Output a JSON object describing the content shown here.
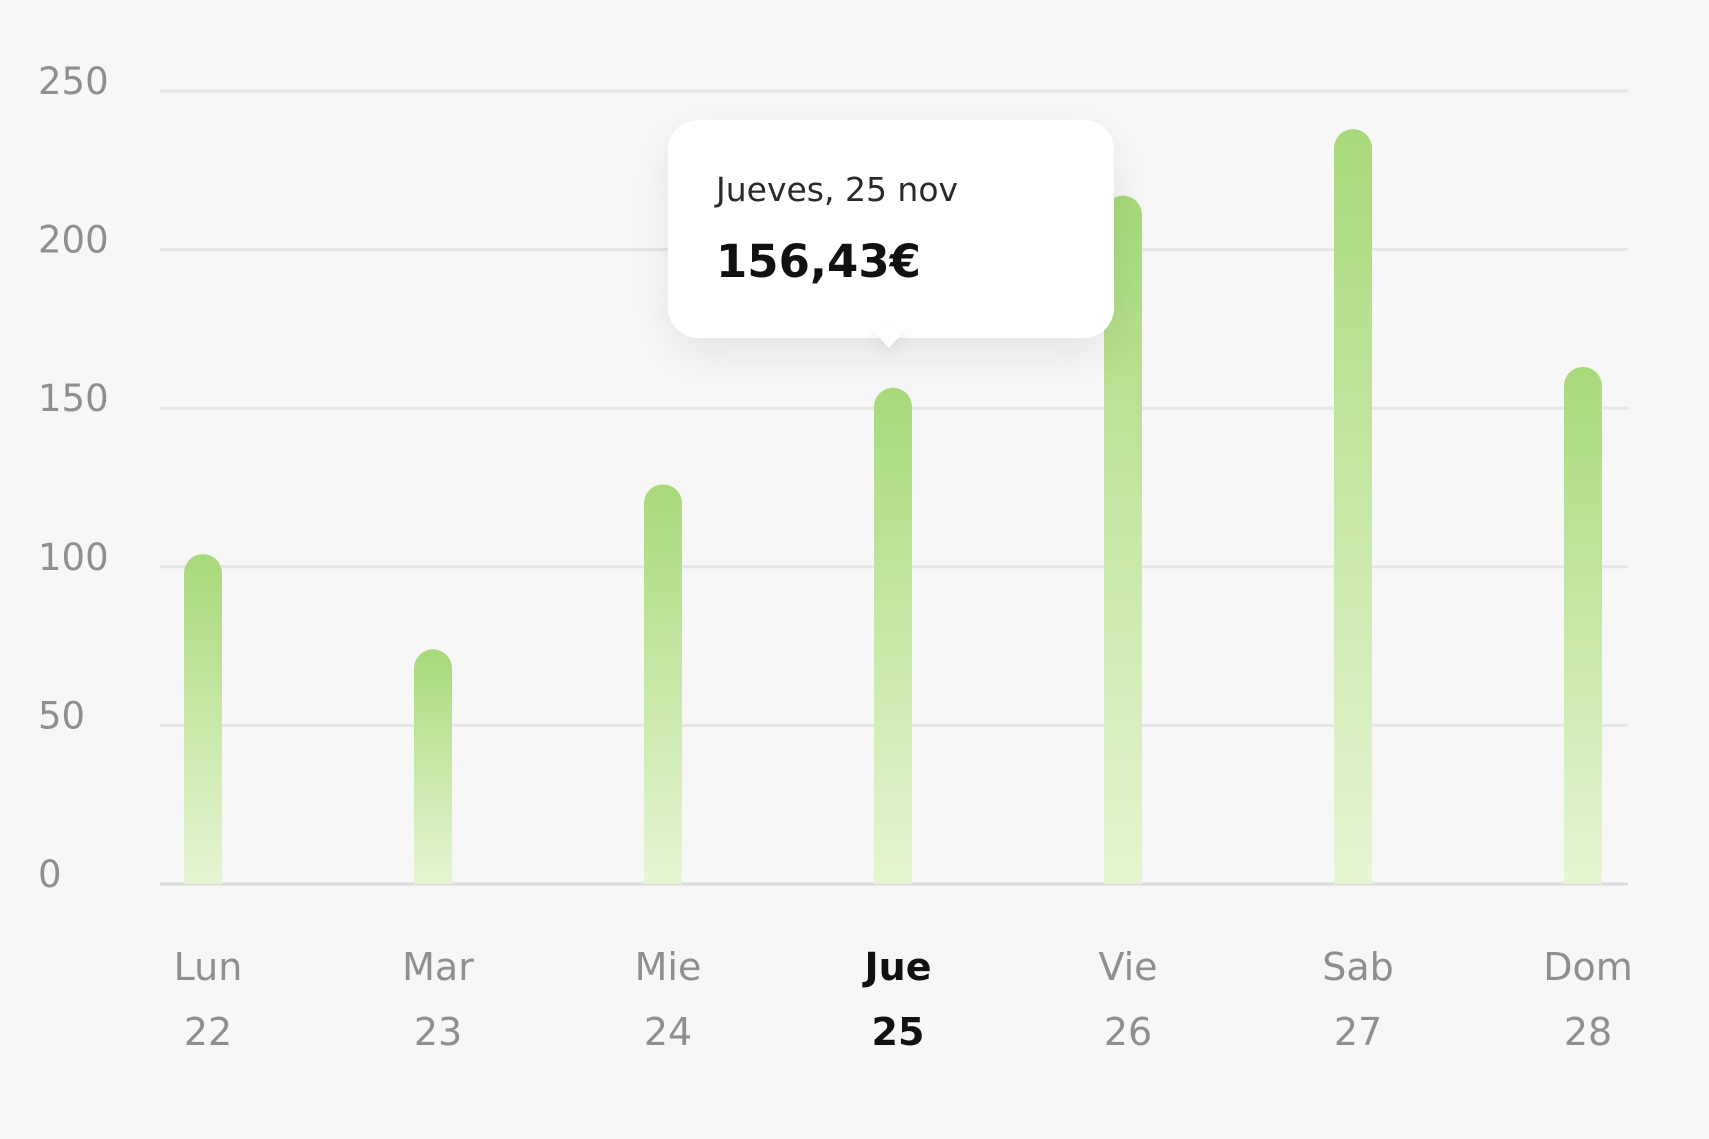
{
  "chart_data": {
    "type": "bar",
    "categories": [
      "Lun 22",
      "Mar 23",
      "Mie 24",
      "Jue 25",
      "Vie 26",
      "Sab 27",
      "Dom 28"
    ],
    "day_labels": [
      "Lun",
      "Mar",
      "Mie",
      "Jue",
      "Vie",
      "Sab",
      "Dom"
    ],
    "date_labels": [
      "22",
      "23",
      "24",
      "25",
      "26",
      "27",
      "28"
    ],
    "values": [
      104,
      74,
      126,
      156.43,
      217,
      238,
      163
    ],
    "ylim": [
      0,
      250
    ],
    "yticks": [
      0,
      50,
      100,
      150,
      200,
      250
    ],
    "grid": true,
    "selected_index": 3,
    "bar_color_top": "#a8d97a",
    "bar_color_bottom": "#e6f6d4",
    "title": "",
    "xlabel": "",
    "ylabel": ""
  },
  "tooltip": {
    "date": "Jueves, 25 nov",
    "value": "156,43€"
  }
}
